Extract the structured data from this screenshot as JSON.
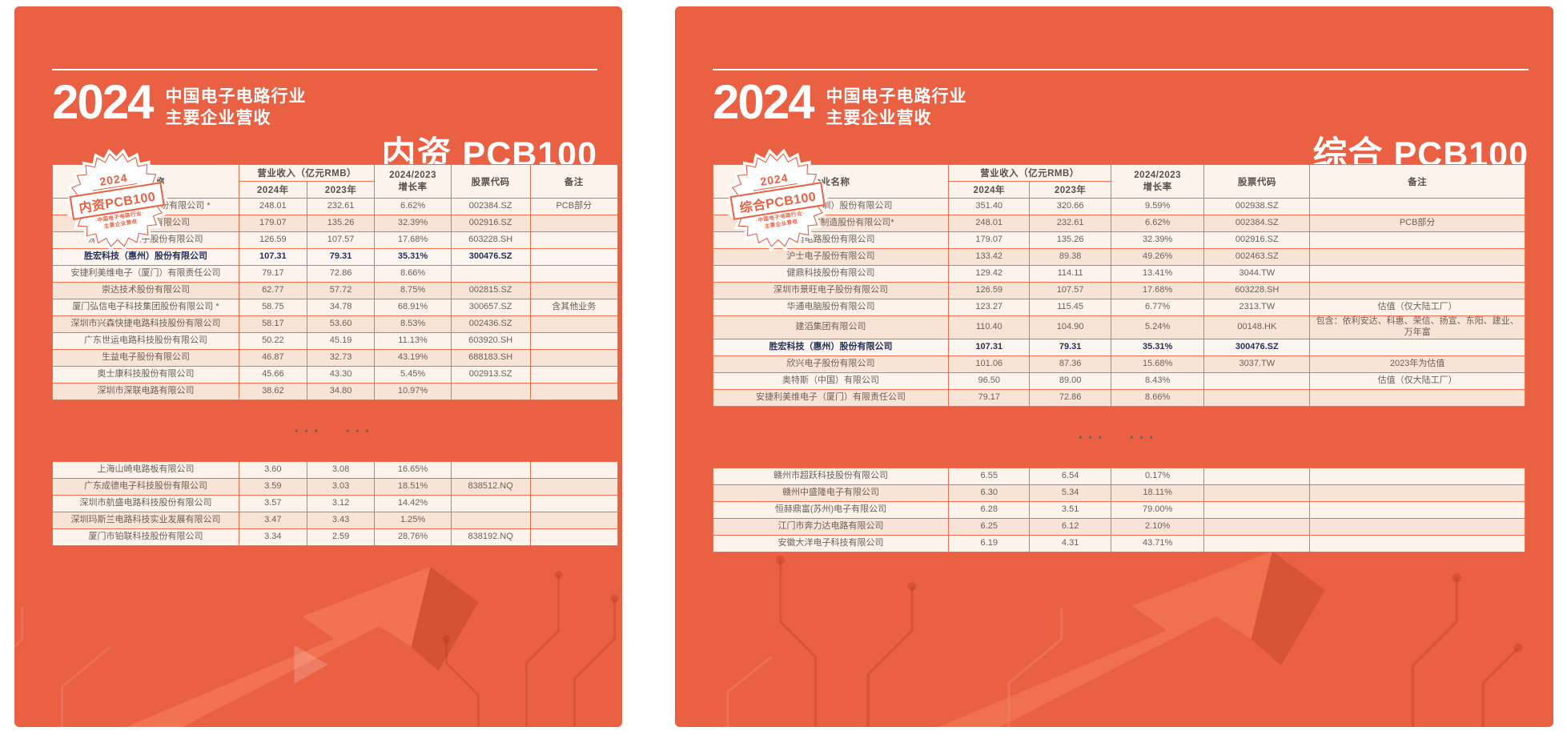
{
  "page": {
    "background": "#ffffff",
    "panel_color": "#e96042",
    "accent": "#e96042",
    "highlight_text": "#25305a"
  },
  "panels": [
    {
      "id": "domestic-pcb100",
      "header": {
        "year": "2024",
        "line1": "中国电子电路行业",
        "line2": "主要企业营收"
      },
      "badge": {
        "year": "2024",
        "label": "内资PCB100",
        "sub1": "·中国电子电路行业·",
        "sub2": "主要企业营收"
      },
      "big_title": "内资 PCB100",
      "table": {
        "col_headers": {
          "name": "企业名称",
          "revenue_group": "营业收入（亿元RMB）",
          "y2024": "2024年",
          "y2023": "2023年",
          "growth_line1": "2024/2023",
          "growth_line2": "增长率",
          "code": "股票代码",
          "note": "备注"
        },
        "separator": "••• •••",
        "rows_top": [
          {
            "name": "苏州东山精密制造股份有限公司 *",
            "y2024": "248.01",
            "y2023": "232.61",
            "growth": "6.62%",
            "code": "002384.SZ",
            "note": "PCB部分"
          },
          {
            "name": "深南电路股份有限公司",
            "y2024": "179.07",
            "y2023": "135.26",
            "growth": "32.39%",
            "code": "002916.SZ",
            "note": ""
          },
          {
            "name": "深圳市景旺电子股份有限公司",
            "y2024": "126.59",
            "y2023": "107.57",
            "growth": "17.68%",
            "code": "603228.SH",
            "note": ""
          },
          {
            "name": "胜宏科技（惠州）股份有限公司",
            "y2024": "107.31",
            "y2023": "79.31",
            "growth": "35.31%",
            "code": "300476.SZ",
            "note": "",
            "highlight": true
          },
          {
            "name": "安捷利美维电子（厦门）有限责任公司",
            "y2024": "79.17",
            "y2023": "72.86",
            "growth": "8.66%",
            "code": "",
            "note": ""
          },
          {
            "name": "崇达技术股份有限公司",
            "y2024": "62.77",
            "y2023": "57.72",
            "growth": "8.75%",
            "code": "002815.SZ",
            "note": ""
          },
          {
            "name": "厦门弘信电子科技集团股份有限公司 *",
            "y2024": "58.75",
            "y2023": "34.78",
            "growth": "68.91%",
            "code": "300657.SZ",
            "note": "含其他业务"
          },
          {
            "name": "深圳市兴森快捷电路科技股份有限公司",
            "y2024": "58.17",
            "y2023": "53.60",
            "growth": "8.53%",
            "code": "002436.SZ",
            "note": ""
          },
          {
            "name": "广东世运电路科技股份有限公司",
            "y2024": "50.22",
            "y2023": "45.19",
            "growth": "11.13%",
            "code": "603920.SH",
            "note": ""
          },
          {
            "name": "生益电子股份有限公司",
            "y2024": "46.87",
            "y2023": "32.73",
            "growth": "43.19%",
            "code": "688183.SH",
            "note": ""
          },
          {
            "name": "奥士康科技股份有限公司",
            "y2024": "45.66",
            "y2023": "43.30",
            "growth": "5.45%",
            "code": "002913.SZ",
            "note": ""
          },
          {
            "name": "深圳市深联电路有限公司",
            "y2024": "38.62",
            "y2023": "34.80",
            "growth": "10.97%",
            "code": "",
            "note": ""
          }
        ],
        "rows_bottom": [
          {
            "name": "上海山崎电路板有限公司",
            "y2024": "3.60",
            "y2023": "3.08",
            "growth": "16.65%",
            "code": "",
            "note": ""
          },
          {
            "name": "广东成德电子科技股份有限公司",
            "y2024": "3.59",
            "y2023": "3.03",
            "growth": "18.51%",
            "code": "838512.NQ",
            "note": ""
          },
          {
            "name": "深圳市航盛电路科技股份有限公司",
            "y2024": "3.57",
            "y2023": "3.12",
            "growth": "14.42%",
            "code": "",
            "note": ""
          },
          {
            "name": "深圳玛斯兰电路科技实业发展有限公司",
            "y2024": "3.47",
            "y2023": "3.43",
            "growth": "1.25%",
            "code": "",
            "note": ""
          },
          {
            "name": "厦门市铂联科技股份有限公司",
            "y2024": "3.34",
            "y2023": "2.59",
            "growth": "28.76%",
            "code": "838192.NQ",
            "note": ""
          }
        ]
      }
    },
    {
      "id": "comprehensive-pcb100",
      "header": {
        "year": "2024",
        "line1": "中国电子电路行业",
        "line2": "主要企业营收"
      },
      "badge": {
        "year": "2024",
        "label": "综合PCB100",
        "sub1": "·中国电子电路行业·",
        "sub2": "主要企业营收"
      },
      "big_title": "综合 PCB100",
      "table": {
        "col_headers": {
          "name": "企业名称",
          "revenue_group": "营业收入（亿元RMB）",
          "y2024": "2024年",
          "y2023": "2023年",
          "growth_line1": "2024/2023",
          "growth_line2": "增长率",
          "code": "股票代码",
          "note": "备注"
        },
        "separator": "••• •••",
        "rows_top": [
          {
            "name": "鹏鼎控股（深圳）股份有限公司",
            "y2024": "351.40",
            "y2023": "320.66",
            "growth": "9.59%",
            "code": "002938.SZ",
            "note": ""
          },
          {
            "name": "苏州东山精密制造股份有限公司*",
            "y2024": "248.01",
            "y2023": "232.61",
            "growth": "6.62%",
            "code": "002384.SZ",
            "note": "PCB部分"
          },
          {
            "name": "深南电路股份有限公司",
            "y2024": "179.07",
            "y2023": "135.26",
            "growth": "32.39%",
            "code": "002916.SZ",
            "note": ""
          },
          {
            "name": "沪士电子股份有限公司",
            "y2024": "133.42",
            "y2023": "89.38",
            "growth": "49.26%",
            "code": "002463.SZ",
            "note": ""
          },
          {
            "name": "健鼎科技股份有限公司",
            "y2024": "129.42",
            "y2023": "114.11",
            "growth": "13.41%",
            "code": "3044.TW",
            "note": ""
          },
          {
            "name": "深圳市景旺电子股份有限公司",
            "y2024": "126.59",
            "y2023": "107.57",
            "growth": "17.68%",
            "code": "603228.SH",
            "note": ""
          },
          {
            "name": "华通电脑股份有限公司",
            "y2024": "123.27",
            "y2023": "115.45",
            "growth": "6.77%",
            "code": "2313.TW",
            "note": "估值（仅大陆工厂）"
          },
          {
            "name": "建滔集团有限公司",
            "y2024": "110.40",
            "y2023": "104.90",
            "growth": "5.24%",
            "code": "00148.HK",
            "note": "包含：依利安达、科惠、荣信、扬宣、东阳、建业、万年富"
          },
          {
            "name": "胜宏科技（惠州）股份有限公司",
            "y2024": "107.31",
            "y2023": "79.31",
            "growth": "35.31%",
            "code": "300476.SZ",
            "note": "",
            "highlight": true
          },
          {
            "name": "欣兴电子股份有限公司",
            "y2024": "101.06",
            "y2023": "87.36",
            "growth": "15.68%",
            "code": "3037.TW",
            "note": "2023年为估值"
          },
          {
            "name": "奥特斯（中国）有限公司",
            "y2024": "96.50",
            "y2023": "89.00",
            "growth": "8.43%",
            "code": "",
            "note": "估值（仅大陆工厂）"
          },
          {
            "name": "安捷利美维电子（厦门）有限责任公司",
            "y2024": "79.17",
            "y2023": "72.86",
            "growth": "8.66%",
            "code": "",
            "note": ""
          }
        ],
        "rows_bottom": [
          {
            "name": "赣州市超跃科技股份有限公司",
            "y2024": "6.55",
            "y2023": "6.54",
            "growth": "0.17%",
            "code": "",
            "note": ""
          },
          {
            "name": "赣州中盛隆电子有限公司",
            "y2024": "6.30",
            "y2023": "5.34",
            "growth": "18.11%",
            "code": "",
            "note": ""
          },
          {
            "name": "恒赫鼎富(苏州)电子有限公司",
            "y2024": "6.28",
            "y2023": "3.51",
            "growth": "79.00%",
            "code": "",
            "note": ""
          },
          {
            "name": "江门市奔力达电路有限公司",
            "y2024": "6.25",
            "y2023": "6.12",
            "growth": "2.10%",
            "code": "",
            "note": ""
          },
          {
            "name": "安徽大洋电子科技有限公司",
            "y2024": "6.19",
            "y2023": "4.31",
            "growth": "43.71%",
            "code": "",
            "note": ""
          }
        ]
      }
    }
  ]
}
